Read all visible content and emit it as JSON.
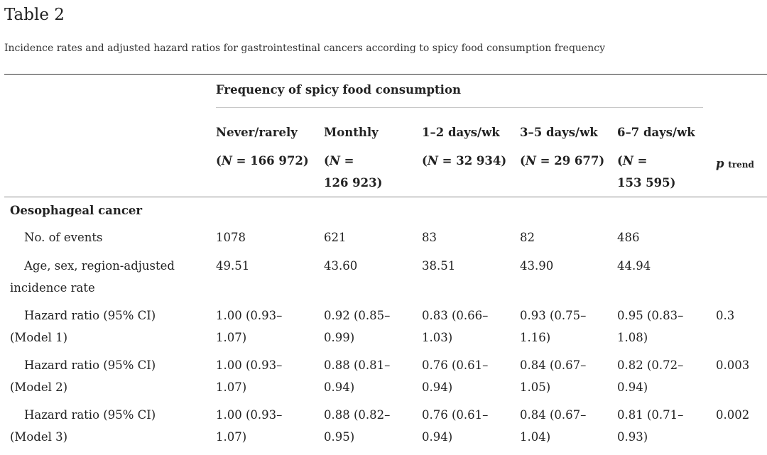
{
  "title": "Table 2",
  "caption": "Incidence rates and adjusted hazard ratios for gastrointestinal cancers according to spicy food consumption frequency",
  "group_header": "Frequency of spicy food consumption",
  "columns": [
    {
      "label": "Never/rarely",
      "n_prefix": "(",
      "n_var": "N",
      "n_value": " = 166 972)",
      "n_line2": ""
    },
    {
      "label": "Monthly",
      "n_prefix": "(",
      "n_var": "N",
      "n_value": " =",
      "n_line2": "126 923)"
    },
    {
      "label": "1–2 days/wk",
      "n_prefix": "(",
      "n_var": "N",
      "n_value": " = 32 934)",
      "n_line2": ""
    },
    {
      "label": "3–5 days/wk",
      "n_prefix": "(",
      "n_var": "N",
      "n_value": " = 29 677)",
      "n_line2": ""
    },
    {
      "label": "6–7 days/wk",
      "n_prefix": "(",
      "n_var": "N",
      "n_value": " =",
      "n_line2": "153 595)"
    }
  ],
  "p_trend": {
    "p": "p",
    "sub": "trend"
  },
  "section": "Oesophageal cancer",
  "rows": [
    {
      "label1": "No. of events",
      "label2": "",
      "cells": [
        [
          "1078",
          ""
        ],
        [
          "621",
          ""
        ],
        [
          "83",
          ""
        ],
        [
          "82",
          ""
        ],
        [
          "486",
          ""
        ]
      ],
      "p": ""
    },
    {
      "label1": "Age, sex, region-adjusted",
      "label2": "incidence rate",
      "cells": [
        [
          "49.51",
          ""
        ],
        [
          "43.60",
          ""
        ],
        [
          "38.51",
          ""
        ],
        [
          "43.90",
          ""
        ],
        [
          "44.94",
          ""
        ]
      ],
      "p": ""
    },
    {
      "label1": "Hazard ratio (95% CI)",
      "label2": "(Model 1)",
      "cells": [
        [
          "1.00 (0.93–",
          "1.07)"
        ],
        [
          "0.92 (0.85–",
          "0.99)"
        ],
        [
          "0.83 (0.66–",
          "1.03)"
        ],
        [
          "0.93 (0.75–",
          "1.16)"
        ],
        [
          "0.95 (0.83–",
          "1.08)"
        ]
      ],
      "p": "0.3"
    },
    {
      "label1": "Hazard ratio (95% CI)",
      "label2": "(Model 2)",
      "cells": [
        [
          "1.00 (0.93–",
          "1.07)"
        ],
        [
          "0.88 (0.81–",
          "0.94)"
        ],
        [
          "0.76 (0.61–",
          "0.94)"
        ],
        [
          "0.84 (0.67–",
          "1.05)"
        ],
        [
          "0.82 (0.72–",
          "0.94)"
        ]
      ],
      "p": "0.003"
    },
    {
      "label1": "Hazard ratio (95% CI)",
      "label2": "(Model 3)",
      "cells": [
        [
          "1.00 (0.93–",
          "1.07)"
        ],
        [
          "0.88 (0.82–",
          "0.95)"
        ],
        [
          "0.76 (0.61–",
          "0.94)"
        ],
        [
          "0.84 (0.67–",
          "1.04)"
        ],
        [
          "0.81 (0.71–",
          "0.93)"
        ]
      ],
      "p": "0.002"
    }
  ]
}
